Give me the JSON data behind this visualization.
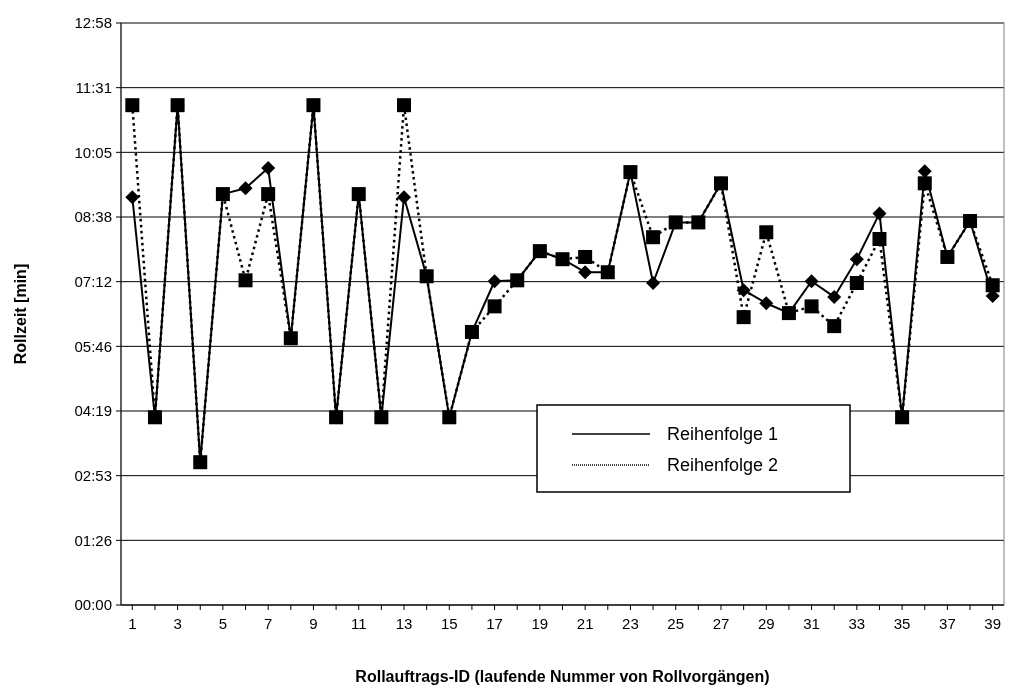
{
  "chart_data": {
    "type": "line",
    "xlabel": "Rollauftrags-ID (laufende Nummer von Rollvorgängen)",
    "ylabel": "Rollzeit [min]",
    "x": [
      1,
      2,
      3,
      4,
      5,
      6,
      7,
      8,
      9,
      10,
      11,
      12,
      13,
      14,
      15,
      16,
      17,
      18,
      19,
      20,
      21,
      22,
      23,
      24,
      25,
      26,
      27,
      28,
      29,
      30,
      31,
      32,
      33,
      34,
      35,
      36,
      37,
      38,
      39
    ],
    "xlim": [
      0.5,
      39.5
    ],
    "xticks": [
      1,
      {
        "value": 2,
        "label": null
      },
      3,
      {
        "value": 4,
        "label": null
      },
      5,
      {
        "value": 6,
        "label": null
      },
      7,
      {
        "value": 8,
        "label": null
      },
      9,
      {
        "value": 10,
        "label": null
      },
      11,
      {
        "value": 12,
        "label": null
      },
      13,
      {
        "value": 14,
        "label": null
      },
      15,
      {
        "value": 16,
        "label": null
      },
      17,
      {
        "value": 18,
        "label": null
      },
      19,
      {
        "value": 20,
        "label": null
      },
      21,
      {
        "value": 22,
        "label": null
      },
      23,
      {
        "value": 24,
        "label": null
      },
      25,
      {
        "value": 26,
        "label": null
      },
      27,
      {
        "value": 28,
        "label": null
      },
      29,
      {
        "value": 30,
        "label": null
      },
      31,
      {
        "value": 32,
        "label": null
      },
      33,
      {
        "value": 34,
        "label": null
      },
      35,
      {
        "value": 36,
        "label": null
      },
      37,
      {
        "value": 38,
        "label": null
      },
      39
    ],
    "ylim": [
      0,
      12.96
    ],
    "yticks": [
      {
        "value": 0,
        "label": "00:00"
      },
      {
        "value": 1.44,
        "label": "01:26"
      },
      {
        "value": 2.88,
        "label": "02:53"
      },
      {
        "value": 4.32,
        "label": "04:19"
      },
      {
        "value": 5.76,
        "label": "05:46"
      },
      {
        "value": 7.2,
        "label": "07:12"
      },
      {
        "value": 8.64,
        "label": "08:38"
      },
      {
        "value": 10.08,
        "label": "10:05"
      },
      {
        "value": 11.52,
        "label": "11:31"
      },
      {
        "value": 12.96,
        "label": "12:58"
      }
    ],
    "grid": "y",
    "legend": "bottom right",
    "series": [
      {
        "name": "Reihenfolge 1",
        "color": "#000000",
        "line_style": "solid",
        "marker": "diamond",
        "values": [
          9.08,
          4.18,
          11.13,
          3.18,
          9.15,
          9.28,
          9.73,
          5.94,
          11.13,
          4.18,
          9.15,
          4.18,
          9.08,
          7.32,
          4.18,
          6.08,
          7.21,
          7.23,
          7.88,
          7.7,
          7.41,
          7.41,
          9.64,
          7.17,
          8.52,
          8.52,
          9.39,
          7.01,
          6.72,
          6.5,
          7.21,
          6.86,
          7.7,
          8.72,
          4.18,
          9.66,
          7.75,
          8.55,
          6.88
        ]
      },
      {
        "name": "Reihenfolge 2",
        "color": "#000000",
        "line_style": "dotted",
        "marker": "square",
        "values": [
          11.13,
          4.18,
          11.13,
          3.18,
          9.15,
          7.23,
          9.15,
          5.94,
          11.13,
          4.18,
          9.15,
          4.18,
          11.13,
          7.32,
          4.18,
          6.08,
          6.65,
          7.23,
          7.88,
          7.7,
          7.75,
          7.41,
          9.64,
          8.19,
          8.52,
          8.52,
          9.39,
          6.41,
          8.3,
          6.5,
          6.65,
          6.21,
          7.17,
          8.15,
          4.18,
          9.39,
          7.75,
          8.55,
          7.12
        ]
      }
    ]
  }
}
